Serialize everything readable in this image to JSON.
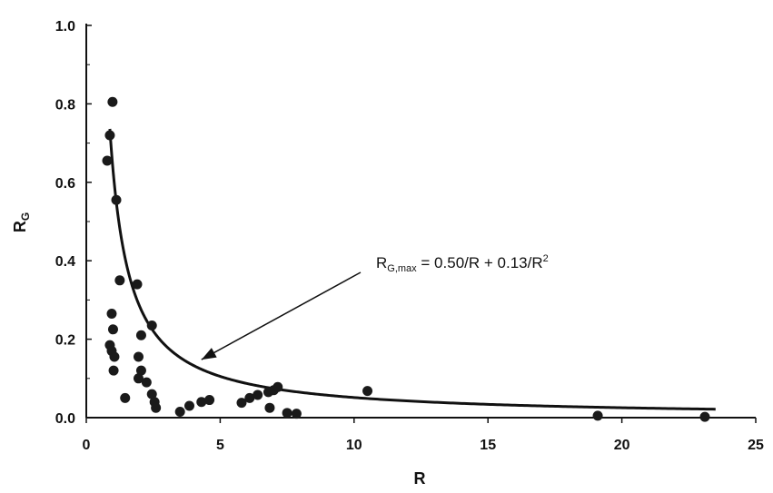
{
  "chart_data": {
    "type": "scatter",
    "xlabel": "R",
    "ylabel_main": "R",
    "ylabel_sub": "G",
    "xlim": [
      0,
      25
    ],
    "ylim": [
      0,
      1.0
    ],
    "x_ticks": [
      "0",
      "5",
      "10",
      "15",
      "20",
      "25"
    ],
    "y_ticks": [
      "0.0",
      "0.2",
      "0.4",
      "0.6",
      "0.8",
      "1.0"
    ],
    "grid": false,
    "annotation": {
      "lhs_main": "R",
      "lhs_sub": "G,max",
      "rhs": " = 0.50/R + 0.13/R",
      "rhs_sup": "2",
      "points_to": {
        "x": 4.3,
        "y": 0.148
      }
    },
    "curve": {
      "a": 0.5,
      "b": 0.13,
      "x_start": 0.88,
      "x_end": 23.5
    },
    "points": [
      {
        "x": 0.78,
        "y": 0.655
      },
      {
        "x": 0.88,
        "y": 0.72
      },
      {
        "x": 0.98,
        "y": 0.805
      },
      {
        "x": 1.12,
        "y": 0.555
      },
      {
        "x": 1.25,
        "y": 0.35
      },
      {
        "x": 0.95,
        "y": 0.265
      },
      {
        "x": 1.0,
        "y": 0.225
      },
      {
        "x": 0.88,
        "y": 0.185
      },
      {
        "x": 0.95,
        "y": 0.17
      },
      {
        "x": 1.05,
        "y": 0.155
      },
      {
        "x": 1.02,
        "y": 0.12
      },
      {
        "x": 1.45,
        "y": 0.05
      },
      {
        "x": 1.9,
        "y": 0.34
      },
      {
        "x": 2.45,
        "y": 0.235
      },
      {
        "x": 2.05,
        "y": 0.21
      },
      {
        "x": 1.95,
        "y": 0.155
      },
      {
        "x": 2.05,
        "y": 0.12
      },
      {
        "x": 1.95,
        "y": 0.1
      },
      {
        "x": 2.25,
        "y": 0.09
      },
      {
        "x": 2.45,
        "y": 0.06
      },
      {
        "x": 2.55,
        "y": 0.04
      },
      {
        "x": 2.6,
        "y": 0.025
      },
      {
        "x": 3.5,
        "y": 0.015
      },
      {
        "x": 3.85,
        "y": 0.03
      },
      {
        "x": 4.3,
        "y": 0.04
      },
      {
        "x": 4.6,
        "y": 0.045
      },
      {
        "x": 5.8,
        "y": 0.038
      },
      {
        "x": 6.1,
        "y": 0.05
      },
      {
        "x": 6.4,
        "y": 0.058
      },
      {
        "x": 6.8,
        "y": 0.065
      },
      {
        "x": 7.0,
        "y": 0.07
      },
      {
        "x": 7.15,
        "y": 0.078
      },
      {
        "x": 6.85,
        "y": 0.025
      },
      {
        "x": 7.5,
        "y": 0.012
      },
      {
        "x": 7.85,
        "y": 0.01
      },
      {
        "x": 10.5,
        "y": 0.068
      },
      {
        "x": 19.1,
        "y": 0.005
      },
      {
        "x": 23.1,
        "y": 0.002
      }
    ]
  }
}
